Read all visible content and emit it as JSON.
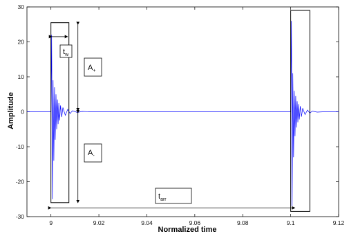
{
  "chart_data": {
    "type": "line",
    "title": "",
    "xlabel": "Normalized time",
    "ylabel": "Amplitude",
    "xlim": [
      8.99,
      9.12
    ],
    "ylim": [
      -30,
      30
    ],
    "x_ticks": [
      9,
      9.02,
      9.04,
      9.06,
      9.08,
      9.1,
      9.12
    ],
    "y_ticks": [
      30,
      20,
      10,
      0,
      -10,
      -20,
      -30
    ],
    "grid": false,
    "series": [
      {
        "color": "#0000ff",
        "bursts": [
          {
            "start": 9.0,
            "points": [
              [
                9.0,
                0
              ],
              [
                9.0003,
                22
              ],
              [
                9.0006,
                -25
              ],
              [
                9.0009,
                9
              ],
              [
                9.0012,
                -14
              ],
              [
                9.0015,
                7
              ],
              [
                9.0018,
                -8
              ],
              [
                9.0021,
                5
              ],
              [
                9.0024,
                -5
              ],
              [
                9.0027,
                3.5
              ],
              [
                9.003,
                -3.5
              ],
              [
                9.0033,
                2.5
              ],
              [
                9.0036,
                -2.5
              ],
              [
                9.004,
                1.8
              ],
              [
                9.0045,
                -1.5
              ],
              [
                9.005,
                1.2
              ],
              [
                9.006,
                -1
              ],
              [
                9.007,
                0.7
              ],
              [
                9.008,
                -0.5
              ],
              [
                9.009,
                0.3
              ],
              [
                9.011,
                -0.2
              ],
              [
                9.013,
                0.1
              ],
              [
                9.016,
                0
              ]
            ]
          },
          {
            "start": 9.1,
            "points": [
              [
                9.1,
                0
              ],
              [
                9.1003,
                26
              ],
              [
                9.1006,
                -27
              ],
              [
                9.1009,
                11
              ],
              [
                9.1012,
                -13
              ],
              [
                9.1015,
                6
              ],
              [
                9.1018,
                -7
              ],
              [
                9.1021,
                4.5
              ],
              [
                9.1024,
                -4.5
              ],
              [
                9.1027,
                3
              ],
              [
                9.103,
                -3
              ],
              [
                9.1033,
                2.2
              ],
              [
                9.1036,
                -2.2
              ],
              [
                9.104,
                1.6
              ],
              [
                9.1045,
                -1.4
              ],
              [
                9.105,
                1
              ],
              [
                9.106,
                -0.8
              ],
              [
                9.107,
                0.5
              ],
              [
                9.108,
                -0.4
              ],
              [
                9.109,
                0.2
              ],
              [
                9.111,
                -0.1
              ],
              [
                9.114,
                0
              ]
            ]
          }
        ]
      }
    ],
    "annotations": {
      "tw": {
        "main": "t",
        "sub": "w"
      },
      "a_plus": {
        "main": "A",
        "sub": "+"
      },
      "a_minus": {
        "main": "A",
        "sub": "-"
      },
      "tarr": {
        "main": "t",
        "sub": "arr"
      }
    },
    "windows": [
      {
        "x0": 9.0,
        "x1": 9.0075,
        "y0": -26,
        "y1": 25.5
      },
      {
        "x0": 9.1,
        "x1": 9.108,
        "y0": -28.5,
        "y1": 29
      }
    ]
  }
}
